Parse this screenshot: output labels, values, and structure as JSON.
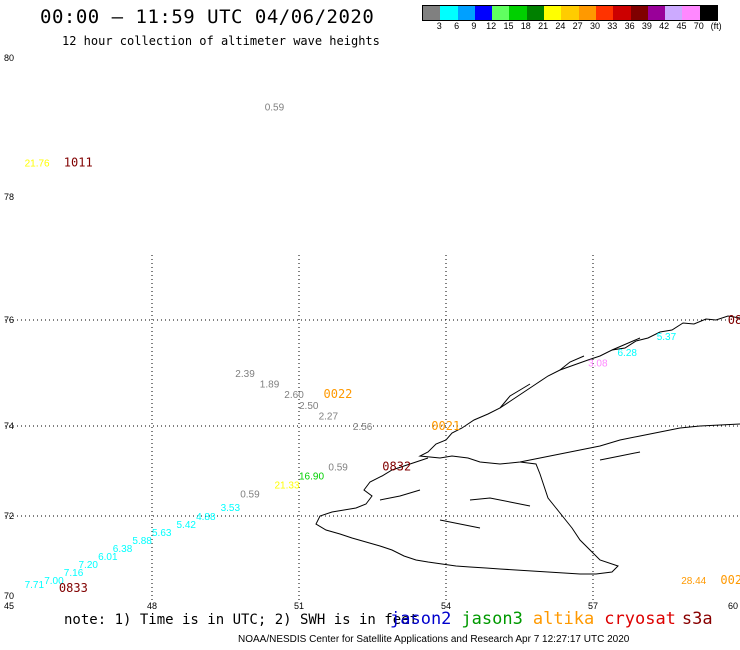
{
  "header": {
    "title": "00:00 – 11:59 UTC 04/06/2020",
    "subtitle": "12 hour collection of altimeter wave heights"
  },
  "colorbar": {
    "colors": [
      "#808080",
      "#00ffff",
      "#00a0ff",
      "#0000ff",
      "#60ff60",
      "#00d000",
      "#008000",
      "#ffff00",
      "#ffcc00",
      "#ff9900",
      "#ff3300",
      "#cc0000",
      "#800000",
      "#990099",
      "#ccaaff",
      "#ff88ff",
      "#000000"
    ],
    "labels": [
      "3",
      "6",
      "9",
      "12",
      "15",
      "18",
      "21",
      "24",
      "27",
      "30",
      "33",
      "36",
      "39",
      "42",
      "45",
      "70",
      "(ft)"
    ]
  },
  "axes": {
    "y_labels": [
      {
        "text": "80",
        "lat": 80
      },
      {
        "text": "78",
        "lat": 78
      },
      {
        "text": "76",
        "lat": 76
      },
      {
        "text": "74",
        "lat": 74
      },
      {
        "text": "72",
        "lat": 72
      },
      {
        "text": "70",
        "lat": 70
      }
    ],
    "x_labels": [
      {
        "text": "45",
        "lon": 45
      },
      {
        "text": "48",
        "lon": 48
      },
      {
        "text": "51",
        "lon": 51
      },
      {
        "text": "54",
        "lon": 54
      },
      {
        "text": "57",
        "lon": 57
      },
      {
        "text": "60",
        "lon": 60
      }
    ],
    "grid_lon": [
      48,
      51,
      54,
      57
    ],
    "grid_lat": [
      72,
      74,
      76
    ]
  },
  "observations": [
    {
      "text": "0.59",
      "lon": 50.3,
      "lat": 79.3,
      "color": "#808080"
    },
    {
      "text": "21.76",
      "lon": 45.4,
      "lat": 78.5,
      "color": "#ffff00"
    },
    {
      "text": "1011",
      "lon": 46.2,
      "lat": 78.5,
      "color": "#800000",
      "time": true
    },
    {
      "text": "2.39",
      "lon": 49.7,
      "lat": 75.0,
      "color": "#808080"
    },
    {
      "text": "1.89",
      "lon": 50.2,
      "lat": 74.8,
      "color": "#808080"
    },
    {
      "text": "2.60",
      "lon": 50.7,
      "lat": 74.6,
      "color": "#808080"
    },
    {
      "text": "0022",
      "lon": 51.5,
      "lat": 74.6,
      "color": "#ff9900",
      "time": true
    },
    {
      "text": "2.50",
      "lon": 51.0,
      "lat": 74.4,
      "color": "#808080"
    },
    {
      "text": "2.27",
      "lon": 51.4,
      "lat": 74.2,
      "color": "#808080"
    },
    {
      "text": "2.56",
      "lon": 52.1,
      "lat": 74.0,
      "color": "#808080"
    },
    {
      "text": "0021",
      "lon": 53.7,
      "lat": 74.0,
      "color": "#ff9900",
      "time": true
    },
    {
      "text": "0.59",
      "lon": 51.6,
      "lat": 73.1,
      "color": "#808080"
    },
    {
      "text": "0832",
      "lon": 52.7,
      "lat": 73.1,
      "color": "#800000",
      "time": true
    },
    {
      "text": "16.90",
      "lon": 51.0,
      "lat": 72.9,
      "color": "#00d000"
    },
    {
      "text": "21.33",
      "lon": 50.5,
      "lat": 72.7,
      "color": "#ffff00"
    },
    {
      "text": "0.59",
      "lon": 49.8,
      "lat": 72.5,
      "color": "#808080"
    },
    {
      "text": "3.53",
      "lon": 49.4,
      "lat": 72.2,
      "color": "#00ffff"
    },
    {
      "text": "4.88",
      "lon": 48.9,
      "lat": 72.0,
      "color": "#00ffff"
    },
    {
      "text": "5.42",
      "lon": 48.5,
      "lat": 71.8,
      "color": "#00ffff"
    },
    {
      "text": "5.63",
      "lon": 48.0,
      "lat": 71.6,
      "color": "#00ffff"
    },
    {
      "text": "5.88",
      "lon": 47.6,
      "lat": 71.4,
      "color": "#00ffff"
    },
    {
      "text": "6.38",
      "lon": 47.2,
      "lat": 71.2,
      "color": "#00ffff"
    },
    {
      "text": "6.01",
      "lon": 46.9,
      "lat": 71.0,
      "color": "#00ffff"
    },
    {
      "text": "7.20",
      "lon": 46.5,
      "lat": 70.8,
      "color": "#00ffff"
    },
    {
      "text": "7.16",
      "lon": 46.2,
      "lat": 70.6,
      "color": "#00ffff"
    },
    {
      "text": "7.00",
      "lon": 45.8,
      "lat": 70.4,
      "color": "#00ffff"
    },
    {
      "text": "7.71",
      "lon": 45.4,
      "lat": 70.3,
      "color": "#00ffff"
    },
    {
      "text": "0833",
      "lon": 46.1,
      "lat": 70.2,
      "color": "#800000",
      "time": true
    },
    {
      "text": "5.37",
      "lon": 58.3,
      "lat": 75.7,
      "color": "#00ffff"
    },
    {
      "text": "6.28",
      "lon": 57.5,
      "lat": 75.4,
      "color": "#00ffff"
    },
    {
      "text": "3.08",
      "lon": 56.9,
      "lat": 75.2,
      "color": "#ff88ff"
    },
    {
      "text": "08",
      "lon": 59.75,
      "lat": 76.0,
      "color": "#800000",
      "time": true
    },
    {
      "text": "28.44",
      "lon": 58.8,
      "lat": 70.4,
      "color": "#ff9900"
    },
    {
      "text": "002",
      "lon": 59.6,
      "lat": 70.4,
      "color": "#ff9900",
      "time": true
    }
  ],
  "legend": {
    "note": "note: 1) Time is in UTC; 2) SWH is in feet",
    "satellites": [
      {
        "name": "jason2",
        "color": "#0000cc"
      },
      {
        "name": "jason3",
        "color": "#009900"
      },
      {
        "name": "altika",
        "color": "#ff9900"
      },
      {
        "name": "cryosat",
        "color": "#dd0000"
      },
      {
        "name": "s3a",
        "color": "#880000"
      }
    ]
  },
  "credit": "NOAA/NESDIS Center for Satellite Applications and Research    Apr  7 12:27:17 UTC 2020"
}
